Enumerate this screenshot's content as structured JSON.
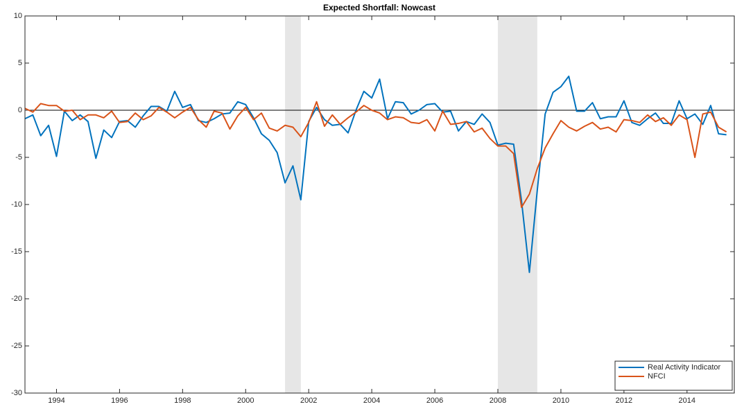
{
  "chart_data": {
    "type": "line",
    "title": "Expected Shortfall: Nowcast",
    "x": [
      1993,
      1993.25,
      1993.5,
      1993.75,
      1994,
      1994.25,
      1994.5,
      1994.75,
      1995,
      1995.25,
      1995.5,
      1995.75,
      1996,
      1996.25,
      1996.5,
      1996.75,
      1997,
      1997.25,
      1997.5,
      1997.75,
      1998,
      1998.25,
      1998.5,
      1998.75,
      1999,
      1999.25,
      1999.5,
      1999.75,
      2000,
      2000.25,
      2000.5,
      2000.75,
      2001,
      2001.25,
      2001.5,
      2001.75,
      2002,
      2002.25,
      2002.5,
      2002.75,
      2003,
      2003.25,
      2003.5,
      2003.75,
      2004,
      2004.25,
      2004.5,
      2004.75,
      2005,
      2005.25,
      2005.5,
      2005.75,
      2006,
      2006.25,
      2006.5,
      2006.75,
      2007,
      2007.25,
      2007.5,
      2007.75,
      2008,
      2008.25,
      2008.5,
      2008.75,
      2009,
      2009.25,
      2009.5,
      2009.75,
      2010,
      2010.25,
      2010.5,
      2010.75,
      2011,
      2011.25,
      2011.5,
      2011.75,
      2012,
      2012.25,
      2012.5,
      2012.75,
      2013,
      2013.25,
      2013.5,
      2013.75,
      2014,
      2014.25,
      2014.5,
      2014.75,
      2015,
      2015.25
    ],
    "series": [
      {
        "name": "Real Activity Indicator",
        "color": "#0072bd",
        "values": [
          -0.9,
          -0.5,
          -2.7,
          -1.6,
          -4.9,
          -0.1,
          -1.1,
          -0.5,
          -1.2,
          -5.1,
          -2.1,
          -2.9,
          -1.2,
          -1.1,
          -1.8,
          -0.6,
          0.4,
          0.4,
          -0.1,
          2.0,
          0.3,
          0.6,
          -1.1,
          -1.3,
          -0.9,
          -0.4,
          -0.3,
          0.9,
          0.6,
          -0.8,
          -2.5,
          -3.2,
          -4.5,
          -7.7,
          -5.9,
          -9.5,
          -1.2,
          0.3,
          -1.0,
          -1.6,
          -1.5,
          -2.4,
          0.0,
          2.0,
          1.3,
          3.3,
          -0.9,
          0.9,
          0.8,
          -0.4,
          0.0,
          0.6,
          0.7,
          -0.2,
          -0.1,
          -2.2,
          -1.2,
          -1.5,
          -0.4,
          -1.3,
          -3.7,
          -3.5,
          -3.6,
          -9.6,
          -17.2,
          -8.5,
          -0.4,
          1.9,
          2.5,
          3.6,
          -0.1,
          -0.1,
          0.8,
          -0.9,
          -0.7,
          -0.7,
          1.0,
          -1.3,
          -1.6,
          -0.9,
          -0.3,
          -1.4,
          -1.4,
          1.0,
          -0.9,
          -0.4,
          -1.5,
          0.5,
          -2.5,
          -2.6
        ]
      },
      {
        "name": "NFCI",
        "color": "#d95319",
        "values": [
          0.2,
          -0.2,
          0.7,
          0.5,
          0.5,
          -0.1,
          0.0,
          -1.0,
          -0.5,
          -0.5,
          -0.8,
          -0.1,
          -1.3,
          -1.2,
          -0.3,
          -1.0,
          -0.6,
          0.3,
          -0.2,
          -0.8,
          -0.2,
          0.3,
          -1.0,
          -1.8,
          -0.1,
          -0.3,
          -2.0,
          -0.6,
          0.3,
          -1.0,
          -0.3,
          -1.9,
          -2.2,
          -1.6,
          -1.8,
          -2.8,
          -1.3,
          0.9,
          -1.7,
          -0.5,
          -1.5,
          -0.8,
          -0.2,
          0.5,
          0.0,
          -0.3,
          -1.0,
          -0.7,
          -0.8,
          -1.3,
          -1.4,
          -1.0,
          -2.2,
          -0.1,
          -1.5,
          -1.4,
          -1.2,
          -2.3,
          -1.9,
          -3.0,
          -3.8,
          -3.8,
          -4.6,
          -10.3,
          -8.9,
          -6.2,
          -4.0,
          -2.5,
          -1.1,
          -1.8,
          -2.2,
          -1.7,
          -1.3,
          -2.0,
          -1.8,
          -2.3,
          -1.0,
          -1.1,
          -1.3,
          -0.5,
          -1.2,
          -0.8,
          -1.6,
          -0.5,
          -1.0,
          -5.0,
          -0.4,
          -0.2,
          -1.8,
          -2.3
        ]
      }
    ],
    "shaded_periods": [
      [
        2001.25,
        2001.75
      ],
      [
        2008,
        2009.25
      ]
    ],
    "shade_color": "#e6e6e6",
    "reference_line": 0,
    "xlim": [
      1993,
      2015.5
    ],
    "xticks": [
      1994,
      1996,
      1998,
      2000,
      2002,
      2004,
      2006,
      2008,
      2010,
      2012,
      2014
    ],
    "ylim": [
      -30,
      10
    ],
    "yticks": [
      -30,
      -25,
      -20,
      -15,
      -10,
      -5,
      0,
      5,
      10
    ],
    "grid": false,
    "legend": "bottom-right"
  }
}
